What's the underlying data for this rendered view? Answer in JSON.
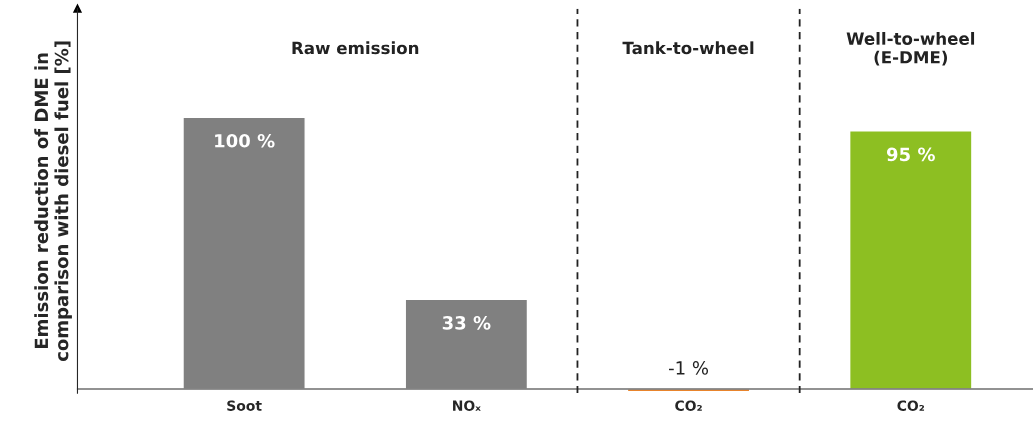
{
  "chart_data": {
    "type": "bar",
    "ylabel": "Emission reduction of DME in\ncomparison with diesel fuel [%]",
    "categories": [
      "Soot",
      "NOₓ",
      "CO₂",
      "CO₂"
    ],
    "values": [
      100,
      33,
      -1,
      95
    ],
    "colors": [
      "#808080",
      "#808080",
      "#e8842c",
      "#8dbf22"
    ],
    "value_labels": [
      "100 %",
      "33 %",
      "-1 %",
      "95 %"
    ],
    "annotations": [
      "Raw emission",
      "Tank-to-wheel",
      "Well-to-wheel\n(E-DME)"
    ],
    "grid": false,
    "legend": false
  }
}
